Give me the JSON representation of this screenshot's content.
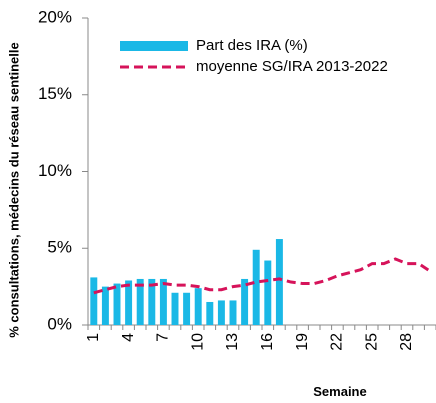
{
  "chart_data": {
    "type": "bar_line",
    "y_label": "% consultations, médecins du réseau sentinelle",
    "x_label": "Semaine",
    "categories": [
      1,
      null,
      null,
      4,
      null,
      null,
      7,
      null,
      null,
      10,
      null,
      null,
      13,
      null,
      null,
      16,
      null,
      null,
      19,
      null,
      null,
      22,
      null,
      null,
      25,
      null,
      null,
      28,
      null,
      null
    ],
    "series": [
      {
        "name": "Part des IRA (%)",
        "kind": "bar",
        "color": "#1ab8e6",
        "values": [
          3.1,
          2.5,
          2.7,
          2.9,
          3.0,
          3.0,
          3.0,
          2.1,
          2.1,
          2.4,
          1.5,
          1.6,
          1.6,
          3.0,
          4.9,
          4.2,
          5.6,
          null,
          null,
          null,
          null,
          null,
          null,
          null,
          null,
          null,
          null,
          null,
          null,
          null
        ]
      },
      {
        "name": "moyenne SG/IRA 2013-2022",
        "kind": "line",
        "color": "#d6135a",
        "values": [
          2.1,
          2.3,
          2.5,
          2.6,
          2.6,
          2.6,
          2.7,
          2.6,
          2.6,
          2.5,
          2.3,
          2.3,
          2.5,
          2.6,
          2.8,
          2.9,
          3.0,
          2.8,
          2.7,
          2.7,
          2.9,
          3.2,
          3.4,
          3.6,
          4.0,
          4.0,
          4.3,
          4.0,
          4.0,
          3.5
        ]
      }
    ],
    "ylim": [
      0,
      20
    ],
    "yticks": [
      {
        "value": 0,
        "label": "0%"
      },
      {
        "value": 5,
        "label": "5%"
      },
      {
        "value": 10,
        "label": "10%"
      },
      {
        "value": 15,
        "label": "15%"
      },
      {
        "value": 20,
        "label": "20%"
      }
    ]
  }
}
